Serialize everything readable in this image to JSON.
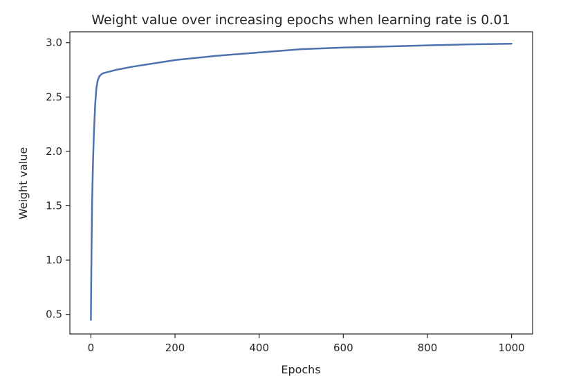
{
  "chart_data": {
    "type": "line",
    "title": "Weight value over increasing epochs when learning rate is 0.01",
    "xlabel": "Epochs",
    "ylabel": "Weight value",
    "xlim": [
      -50,
      1050
    ],
    "ylim": [
      0.32,
      3.1
    ],
    "xticks": [
      0,
      200,
      400,
      600,
      800,
      1000
    ],
    "yticks": [
      0.5,
      1.0,
      1.5,
      2.0,
      2.5,
      3.0
    ],
    "xtick_labels": [
      "0",
      "200",
      "400",
      "600",
      "800",
      "1000"
    ],
    "ytick_labels": [
      "0.5",
      "1.0",
      "1.5",
      "2.0",
      "2.5",
      "3.0"
    ],
    "grid": false,
    "line_color": "#4c72b0",
    "series": [
      {
        "x": [
          0,
          1,
          2,
          3,
          5,
          7,
          10,
          13,
          16,
          20,
          25,
          30,
          40,
          60,
          100,
          150,
          200,
          300,
          400,
          500,
          600,
          700,
          800,
          900,
          1000
        ],
        "y": [
          0.45,
          0.9,
          1.25,
          1.55,
          1.9,
          2.15,
          2.42,
          2.58,
          2.65,
          2.69,
          2.71,
          2.72,
          2.73,
          2.75,
          2.78,
          2.81,
          2.84,
          2.88,
          2.91,
          2.94,
          2.955,
          2.965,
          2.975,
          2.985,
          2.99
        ]
      }
    ]
  }
}
